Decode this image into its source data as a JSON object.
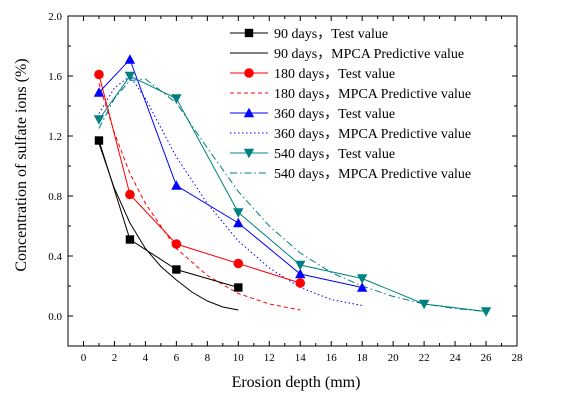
{
  "chart_data": {
    "type": "scatter",
    "title": "",
    "xlabel": "Erosion depth (mm)",
    "ylabel": "Concentration of sulfate ions (%)",
    "xlim": [
      -1,
      28
    ],
    "ylim": [
      -0.2,
      2.0
    ],
    "xticks": [
      "0",
      "2",
      "4",
      "6",
      "8",
      "10",
      "12",
      "14",
      "16",
      "18",
      "20",
      "22",
      "24",
      "26",
      "28"
    ],
    "yticks": [
      "0.0",
      "0.4",
      "0.8",
      "1.2",
      "1.6",
      "2.0"
    ],
    "grid": false,
    "legend_position": "top-right",
    "colors": {
      "d90": "#000000",
      "d180": "#ff0000",
      "d360": "#0000ff",
      "d540": "#008080"
    },
    "series": [
      {
        "name": "90 days，Test value",
        "kind": "test",
        "marker": "square",
        "color_key": "d90",
        "x": [
          1,
          3,
          6,
          10
        ],
        "y": [
          1.17,
          0.51,
          0.31,
          0.19
        ]
      },
      {
        "name": "90 days，MPCA Predictive value",
        "kind": "predictive",
        "dash": "solid",
        "color_key": "d90",
        "x": [
          1,
          2,
          3,
          4,
          5,
          6,
          7,
          8,
          9,
          10
        ],
        "y": [
          1.15,
          0.85,
          0.62,
          0.45,
          0.33,
          0.24,
          0.16,
          0.1,
          0.06,
          0.04
        ]
      },
      {
        "name": "180 days，Test value",
        "kind": "test",
        "marker": "circle",
        "color_key": "d180",
        "x": [
          1,
          3,
          6,
          10,
          14
        ],
        "y": [
          1.61,
          0.81,
          0.48,
          0.35,
          0.22
        ]
      },
      {
        "name": "180 days，MPCA Predictive value",
        "kind": "predictive",
        "dash": "4,3",
        "color_key": "d180",
        "x": [
          1,
          2,
          3,
          4,
          6,
          8,
          10,
          12,
          14
        ],
        "y": [
          1.55,
          1.22,
          0.95,
          0.75,
          0.45,
          0.27,
          0.15,
          0.08,
          0.04
        ]
      },
      {
        "name": "360 days，Test value",
        "kind": "test",
        "marker": "triangle-up",
        "color_key": "d360",
        "x": [
          1,
          3,
          6,
          10,
          14,
          18
        ],
        "y": [
          1.49,
          1.71,
          0.87,
          0.62,
          0.28,
          0.19
        ]
      },
      {
        "name": "360 days，MPCA Predictive value",
        "kind": "predictive",
        "dash": "1.5,2.5",
        "color_key": "d360",
        "x": [
          1,
          2,
          3,
          4,
          6,
          8,
          10,
          12,
          14,
          16,
          18
        ],
        "y": [
          1.35,
          1.52,
          1.6,
          1.45,
          1.06,
          0.75,
          0.5,
          0.32,
          0.19,
          0.11,
          0.07
        ]
      },
      {
        "name": "540 days，Test value",
        "kind": "test",
        "marker": "triangle-down",
        "color_key": "d540",
        "x": [
          1,
          3,
          6,
          10,
          14,
          18,
          22,
          26
        ],
        "y": [
          1.31,
          1.6,
          1.45,
          0.69,
          0.34,
          0.25,
          0.08,
          0.03
        ]
      },
      {
        "name": "540 days，MPCA Predictive value",
        "kind": "predictive",
        "dash": "7,3,1.5,3",
        "color_key": "d540",
        "x": [
          1,
          2,
          3,
          4,
          6,
          8,
          10,
          12,
          14,
          16,
          18,
          20,
          22,
          24,
          26
        ],
        "y": [
          1.25,
          1.45,
          1.57,
          1.58,
          1.42,
          1.12,
          0.83,
          0.6,
          0.42,
          0.29,
          0.2,
          0.13,
          0.08,
          0.05,
          0.03
        ]
      }
    ]
  }
}
